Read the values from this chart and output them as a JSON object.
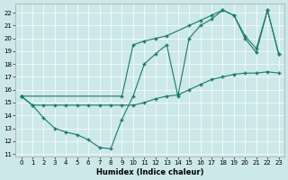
{
  "xlabel": "Humidex (Indice chaleur)",
  "xlim": [
    -0.5,
    23.5
  ],
  "ylim": [
    10.8,
    22.7
  ],
  "yticks": [
    11,
    12,
    13,
    14,
    15,
    16,
    17,
    18,
    19,
    20,
    21,
    22
  ],
  "xticks": [
    0,
    1,
    2,
    3,
    4,
    5,
    6,
    7,
    8,
    9,
    10,
    11,
    12,
    13,
    14,
    15,
    16,
    17,
    18,
    19,
    20,
    21,
    22,
    23
  ],
  "bg_color": "#cce8e8",
  "grid_color": "#ffffff",
  "line_color": "#1a7a6e",
  "line1_x": [
    0,
    1,
    2,
    3,
    4,
    5,
    6,
    7,
    8,
    9,
    10,
    11,
    12,
    13,
    14,
    15,
    16,
    17,
    18,
    19,
    20,
    21,
    22,
    23
  ],
  "line1_y": [
    15.5,
    14.8,
    13.8,
    13.0,
    12.7,
    12.5,
    12.1,
    11.5,
    11.4,
    13.7,
    15.5,
    18.0,
    18.8,
    19.5,
    15.5,
    20.0,
    21.0,
    21.5,
    22.2,
    21.8,
    20.0,
    18.9,
    22.2,
    18.8
  ],
  "line2_x": [
    0,
    9,
    10,
    11,
    12,
    13,
    15,
    16,
    17,
    18,
    19,
    20,
    21,
    22,
    23
  ],
  "line2_y": [
    15.5,
    15.5,
    19.5,
    19.8,
    20.0,
    20.2,
    21.0,
    21.4,
    21.8,
    22.2,
    21.8,
    20.2,
    19.2,
    22.2,
    18.8
  ],
  "line3_x": [
    0,
    1,
    2,
    3,
    4,
    5,
    6,
    7,
    8,
    9,
    10,
    11,
    12,
    13,
    14,
    15,
    16,
    17,
    18,
    19,
    20,
    21,
    22,
    23
  ],
  "line3_y": [
    15.5,
    14.8,
    14.8,
    14.8,
    14.8,
    14.8,
    14.8,
    14.8,
    14.8,
    14.8,
    14.8,
    15.0,
    15.3,
    15.5,
    15.6,
    16.0,
    16.4,
    16.8,
    17.0,
    17.2,
    17.3,
    17.3,
    17.4,
    17.3
  ],
  "marker": "+",
  "markersize": 3.5,
  "linewidth": 0.8
}
